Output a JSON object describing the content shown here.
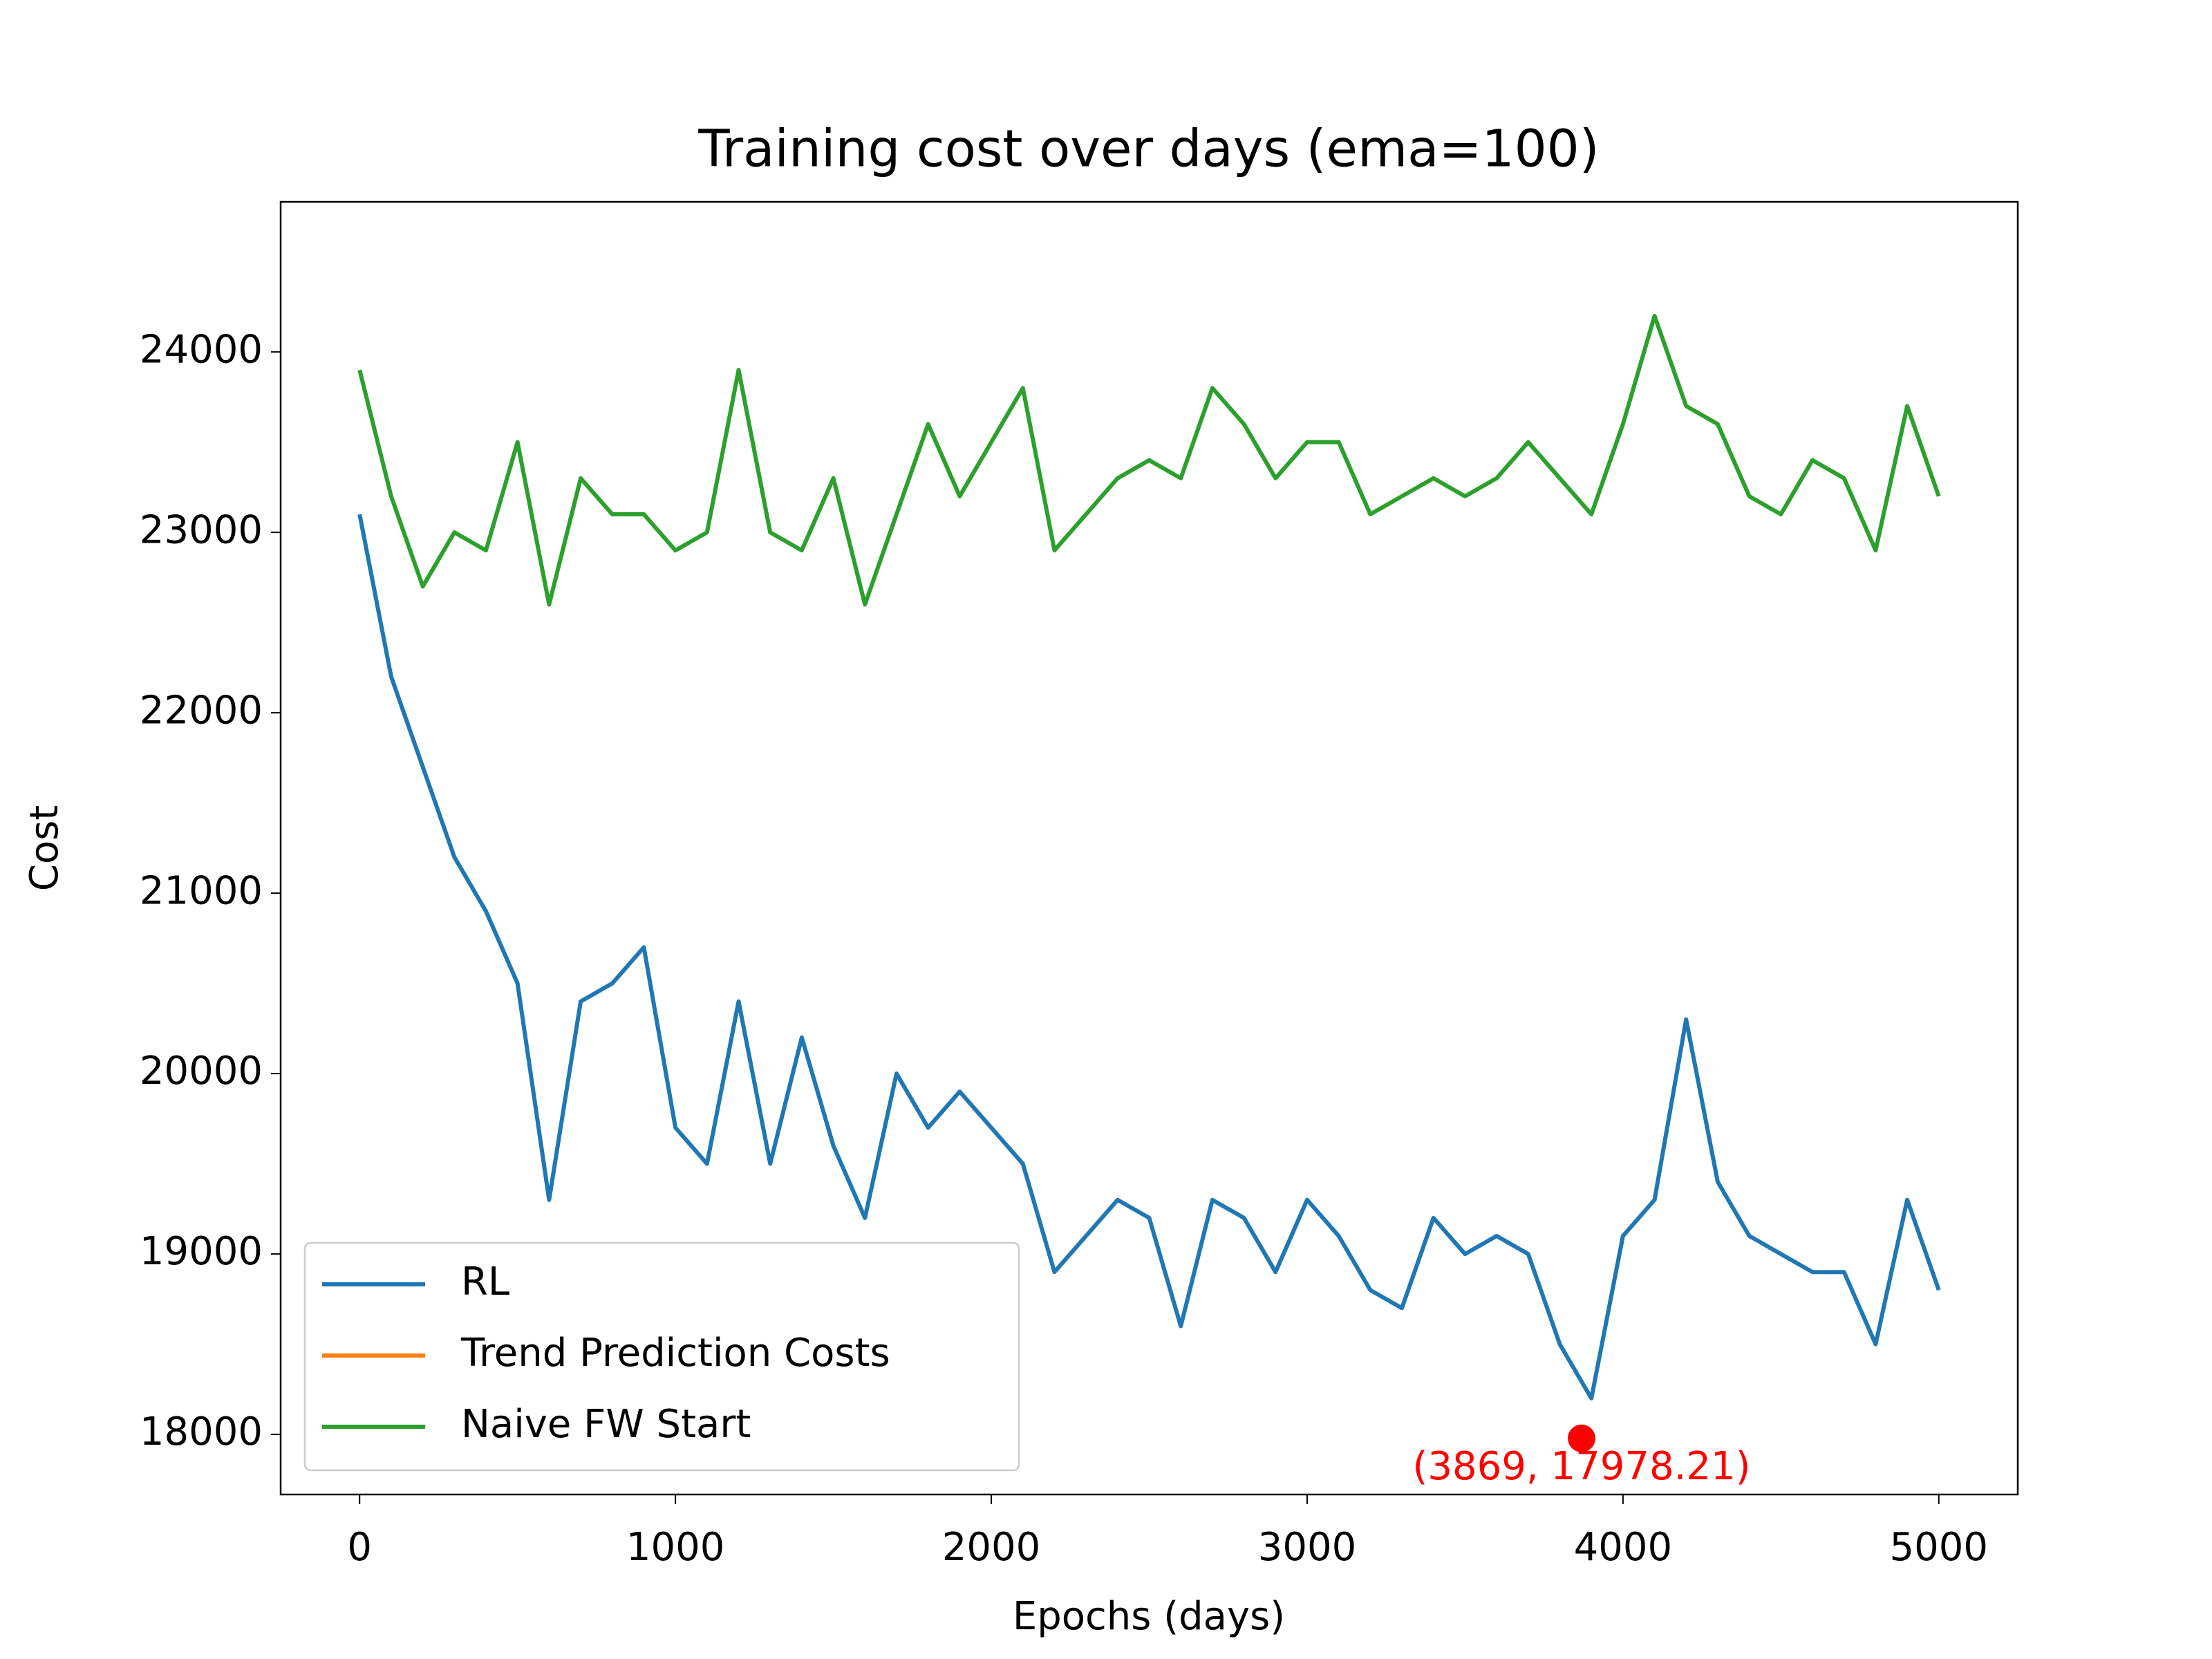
{
  "chart_data": {
    "type": "line",
    "title": "Training cost over days (ema=100)",
    "x_label": "Epochs (days)",
    "y_label": "Cost",
    "x": [
      0,
      100,
      200,
      300,
      400,
      500,
      600,
      700,
      800,
      900,
      1000,
      1100,
      1200,
      1300,
      1400,
      1500,
      1600,
      1700,
      1800,
      1900,
      2000,
      2100,
      2200,
      2300,
      2400,
      2500,
      2600,
      2700,
      2800,
      2900,
      3000,
      3100,
      3200,
      3300,
      3400,
      3500,
      3600,
      3700,
      3800,
      3900,
      4000,
      4100,
      4200,
      4300,
      4400,
      4500,
      4600,
      4700,
      4800,
      4900,
      5000
    ],
    "series": [
      {
        "name": "RL",
        "color": "#1f77b4",
        "values": [
          23100,
          22200,
          21700,
          21200,
          20900,
          20500,
          19300,
          20400,
          20500,
          20700,
          19700,
          19500,
          20400,
          19500,
          20200,
          19600,
          19200,
          20000,
          19700,
          19900,
          19700,
          19500,
          18900,
          19100,
          19300,
          19200,
          18600,
          19300,
          19200,
          18900,
          19300,
          19100,
          18800,
          18700,
          19200,
          19000,
          19100,
          19000,
          18500,
          18200,
          19100,
          19300,
          20300,
          19400,
          19100,
          19000,
          18900,
          18900,
          18500,
          19300,
          18800
        ]
      },
      {
        "name": "Trend Prediction Costs",
        "color": "#ff7f0e",
        "values": [
          null,
          null,
          null,
          null,
          null,
          null,
          null,
          null,
          null,
          null,
          null,
          null,
          null,
          null,
          null,
          null,
          null,
          null,
          null,
          null,
          null,
          null,
          null,
          null,
          null,
          null,
          null,
          null,
          null,
          null,
          null,
          null,
          null,
          null,
          null,
          null,
          null,
          null,
          null,
          null,
          null,
          null,
          null,
          null,
          null,
          null,
          null,
          null,
          null,
          null,
          null
        ]
      },
      {
        "name": "Naive FW Start",
        "color": "#2ca02c",
        "values": [
          23900,
          23200,
          22700,
          23000,
          22900,
          23500,
          22600,
          23300,
          23100,
          23100,
          22900,
          23000,
          23900,
          23000,
          22900,
          23300,
          22600,
          23100,
          23600,
          23200,
          23500,
          23800,
          22900,
          23100,
          23300,
          23400,
          23300,
          23800,
          23600,
          23300,
          23500,
          23500,
          23100,
          23200,
          23300,
          23200,
          23300,
          23500,
          23300,
          23100,
          23600,
          24200,
          23700,
          23600,
          23200,
          23100,
          23400,
          23300,
          22900,
          23700,
          23200
        ]
      }
    ],
    "annotations": [
      {
        "x": 3869,
        "y": 17978.21,
        "label": "(3869, 17978.21)",
        "color": "#ff0000"
      }
    ],
    "xlim": [
      -250,
      5250
    ],
    "ylim": [
      17667,
      24832
    ],
    "xticks": [
      0,
      1000,
      2000,
      3000,
      4000,
      5000
    ],
    "yticks": [
      18000,
      19000,
      20000,
      21000,
      22000,
      23000,
      24000
    ],
    "legend": "lower left",
    "grid": false
  }
}
